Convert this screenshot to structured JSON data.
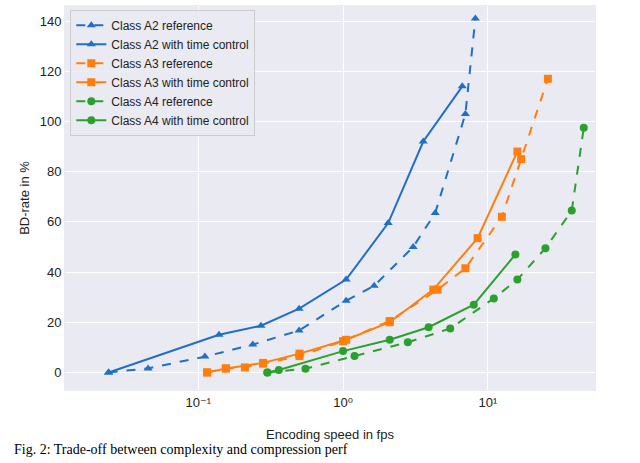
{
  "chart_data": {
    "type": "line",
    "x_label": "Encoding speed in fps",
    "y_label": "BD-rate in %",
    "caption": "Fig. 2: Trade-off between complexity and compression perf",
    "log": "x",
    "grid": true,
    "legend": "upper left",
    "xlim": [
      0.012,
      55
    ],
    "ylim": [
      -7,
      146
    ],
    "xticks": [
      {
        "value": 0.1,
        "label": "10⁻¹"
      },
      {
        "value": 1,
        "label": "10⁰"
      },
      {
        "value": 10,
        "label": "10¹"
      }
    ],
    "yticks": [
      0,
      20,
      40,
      60,
      80,
      100,
      120,
      140
    ],
    "series": [
      {
        "name": "Class A2 reference",
        "color": "#1f6fc4",
        "marker": "triangle-up",
        "line_style": "dash",
        "x": [
          0.024,
          0.045,
          0.111,
          0.238,
          0.497,
          1.05,
          1.64,
          3.05,
          4.33,
          7.0,
          8.2
        ],
        "values": [
          0,
          1.6,
          6.3,
          11.1,
          16.7,
          28.6,
          34.5,
          50,
          63.5,
          103,
          141
        ]
      },
      {
        "name": "Class A2 with time control",
        "color": "#1f6fc4",
        "marker": "triangle-up",
        "line_style": "solid",
        "x": [
          0.024,
          0.139,
          0.271,
          0.497,
          1.05,
          2.05,
          3.58,
          6.66
        ],
        "values": [
          0,
          15,
          18.6,
          25.4,
          37,
          59.5,
          92,
          114
        ]
      },
      {
        "name": "Class A3 reference",
        "color": "#ff7f0e",
        "marker": "square",
        "line_style": "dash",
        "x": [
          0.115,
          0.155,
          0.21,
          0.28,
          0.5,
          1.0,
          2.1,
          4.5,
          7.0,
          12.5,
          17,
          26
        ],
        "values": [
          0,
          1.6,
          2,
          3.5,
          6.5,
          12.5,
          20.5,
          33,
          41.5,
          62,
          85,
          117
        ]
      },
      {
        "name": "Class A3 with time control",
        "color": "#ff7f0e",
        "marker": "square",
        "line_style": "solid",
        "x": [
          0.115,
          0.155,
          0.28,
          0.5,
          1.05,
          2.1,
          4.2,
          8.5,
          16
        ],
        "values": [
          0,
          1.6,
          3.8,
          7.5,
          13,
          20,
          33,
          53.5,
          88
        ]
      },
      {
        "name": "Class A4 reference",
        "color": "#2ca02c",
        "marker": "circle",
        "line_style": "dash",
        "x": [
          0.3,
          0.55,
          1.2,
          2.8,
          5.5,
          11,
          16,
          25,
          38,
          46
        ],
        "values": [
          0,
          1.5,
          6.5,
          12,
          17.5,
          29.5,
          37,
          49.5,
          64.5,
          97.5
        ]
      },
      {
        "name": "Class A4 with time control",
        "color": "#2ca02c",
        "marker": "circle",
        "line_style": "solid",
        "x": [
          0.3,
          0.36,
          1.0,
          2.1,
          3.9,
          8,
          15.5
        ],
        "values": [
          0,
          1,
          8.5,
          13,
          18,
          27,
          47
        ]
      }
    ]
  }
}
